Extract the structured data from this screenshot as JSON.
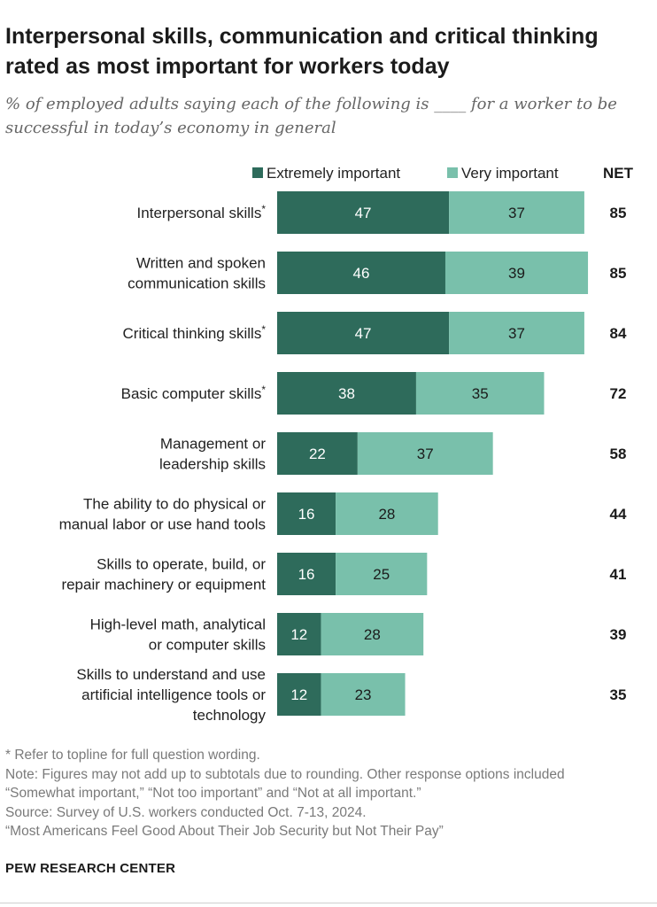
{
  "header": {
    "title": "Interpersonal skills, communication and critical thinking rated as most important for workers today",
    "subtitle": "% of employed adults saying each of the following is ____ for a worker to be successful in today’s economy in general"
  },
  "chart_data": {
    "type": "bar",
    "orientation": "horizontal",
    "stacked": true,
    "categories": [
      "Interpersonal skills*",
      "Written and spoken communication skills",
      "Critical thinking skills*",
      "Basic computer skills*",
      "Management or leadership skills",
      "The ability to do physical or manual labor or use hand tools",
      "Skills to operate, build, or repair machinery or equipment",
      "High-level math, analytical or computer skills",
      "Skills to understand and use artificial intelligence tools or technology"
    ],
    "category_lines": [
      [
        "Interpersonal skills*"
      ],
      [
        "Written and spoken",
        "communication skills"
      ],
      [
        "Critical thinking skills*"
      ],
      [
        "Basic computer skills*"
      ],
      [
        "Management or",
        "leadership skills"
      ],
      [
        "The ability to do physical or",
        "manual labor or use hand tools"
      ],
      [
        "Skills to operate, build, or",
        "repair machinery or equipment"
      ],
      [
        "High-level math, analytical",
        "or computer skills"
      ],
      [
        "Skills to understand and use",
        "artificial intelligence tools or",
        "technology"
      ]
    ],
    "series": [
      {
        "name": "Extremely important",
        "color": "#2e6b5b",
        "label_color": "#ffffff",
        "values": [
          47,
          46,
          47,
          38,
          22,
          16,
          16,
          12,
          12
        ]
      },
      {
        "name": "Very important",
        "color": "#79c0ab",
        "label_color": "#1b1b1b",
        "values": [
          37,
          39,
          37,
          35,
          37,
          28,
          25,
          28,
          23
        ]
      }
    ],
    "net_header": "NET",
    "net": [
      85,
      85,
      84,
      72,
      58,
      44,
      41,
      39,
      35
    ],
    "xlim": [
      0,
      100
    ],
    "grid": false,
    "legend_position": "top"
  },
  "footer": {
    "notes": [
      "* Refer to topline for full question wording.",
      "Note: Figures may not add up to subtotals due to rounding. Other response options included",
      "“Somewhat important,” “Not too important” and “Not at all important.”",
      "Source: Survey of U.S. workers conducted Oct. 7-13, 2024.",
      "“Most Americans Feel Good About Their Job Security but Not Their Pay”"
    ],
    "source_org": "PEW RESEARCH CENTER"
  }
}
